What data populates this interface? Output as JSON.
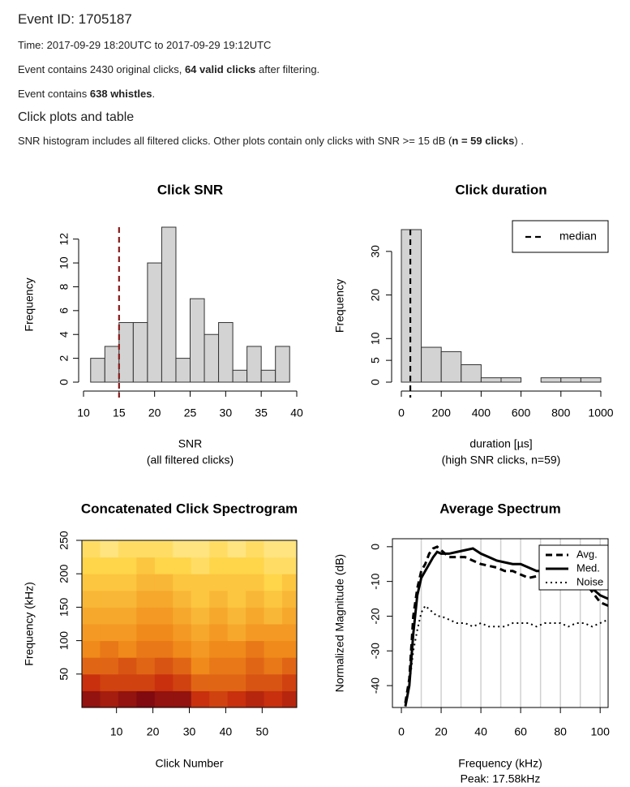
{
  "header": {
    "title": "Event ID: 1705187",
    "time": "Time: 2017-09-29 18:20UTC to 2017-09-29 19:12UTC",
    "clicks": [
      "Event contains 2430 original clicks, ",
      "64 valid clicks",
      " after filtering."
    ],
    "whistles": [
      "Event contains ",
      "638 whistles",
      "."
    ],
    "section": "Click plots and table",
    "note": [
      "SNR histogram includes all filtered clicks. Other plots contain only clicks with SNR >= 15 dB (",
      "n = 59 clicks",
      ") ."
    ]
  },
  "chart_data": [
    {
      "type": "histogram",
      "title": "Click SNR",
      "xlabel": "SNR",
      "subtitle": "(all filtered clicks)",
      "ylabel": "Frequency",
      "bins": [
        11,
        13,
        15,
        17,
        19,
        21,
        23,
        25,
        27,
        29,
        31,
        33,
        35,
        37,
        39
      ],
      "values": [
        2,
        3,
        5,
        5,
        10,
        13,
        2,
        7,
        4,
        5,
        1,
        3,
        1,
        3
      ],
      "color": "#d3d3d3",
      "xlim": [
        10,
        40
      ],
      "xticks": [
        10,
        15,
        20,
        25,
        30,
        35,
        40
      ],
      "ylim": [
        0,
        13
      ],
      "yticks": [
        0,
        2,
        4,
        6,
        8,
        10,
        12
      ],
      "vline": {
        "value": 15,
        "color": "#8b1a1a"
      }
    },
    {
      "type": "histogram",
      "title": "Click duration",
      "xlabel": "duration [µs]",
      "subtitle": "(high SNR clicks, n=59)",
      "ylabel": "Frequency",
      "bins": [
        0,
        100,
        200,
        300,
        400,
        500,
        600,
        700,
        800,
        900,
        1000
      ],
      "values": [
        35,
        8,
        7,
        4,
        1,
        1,
        0,
        1,
        1,
        1
      ],
      "color": "#d3d3d3",
      "xlim": [
        0,
        1000
      ],
      "xticks": [
        0,
        200,
        400,
        600,
        800,
        1000
      ],
      "ylim": [
        0,
        35
      ],
      "yticks": [
        0,
        5,
        10,
        20,
        30
      ],
      "vline": {
        "value": 45,
        "color": "#000000",
        "name": "median"
      },
      "legend": "top-right"
    },
    {
      "type": "heatmap",
      "title": "Concatenated Click Spectrogram",
      "xlabel": "Click Number",
      "ylabel": "Frequency (kHz)",
      "xbins": [
        0.5,
        5.5,
        10.5,
        15.5,
        20.5,
        25.5,
        30.5,
        35.5,
        40.5,
        45.5,
        50.5,
        55.5,
        59.5
      ],
      "ybins": [
        0,
        25,
        50,
        75,
        100,
        125,
        150,
        175,
        200,
        225,
        250
      ],
      "z": [
        [
          0.9,
          0.85,
          0.9,
          0.95,
          0.9,
          0.9,
          0.75,
          0.7,
          0.75,
          0.8,
          0.75,
          0.8
        ],
        [
          0.75,
          0.7,
          0.7,
          0.7,
          0.75,
          0.7,
          0.6,
          0.6,
          0.6,
          0.65,
          0.65,
          0.7
        ],
        [
          0.6,
          0.6,
          0.65,
          0.6,
          0.65,
          0.6,
          0.5,
          0.55,
          0.55,
          0.6,
          0.55,
          0.6
        ],
        [
          0.5,
          0.55,
          0.5,
          0.55,
          0.55,
          0.5,
          0.45,
          0.5,
          0.5,
          0.55,
          0.5,
          0.5
        ],
        [
          0.45,
          0.45,
          0.45,
          0.5,
          0.5,
          0.45,
          0.4,
          0.45,
          0.4,
          0.45,
          0.45,
          0.45
        ],
        [
          0.4,
          0.4,
          0.4,
          0.45,
          0.45,
          0.4,
          0.35,
          0.4,
          0.35,
          0.4,
          0.35,
          0.4
        ],
        [
          0.35,
          0.35,
          0.35,
          0.4,
          0.4,
          0.35,
          0.3,
          0.35,
          0.3,
          0.35,
          0.3,
          0.35
        ],
        [
          0.3,
          0.3,
          0.3,
          0.35,
          0.35,
          0.3,
          0.3,
          0.3,
          0.3,
          0.3,
          0.25,
          0.3
        ],
        [
          0.25,
          0.25,
          0.25,
          0.3,
          0.25,
          0.25,
          0.2,
          0.25,
          0.25,
          0.25,
          0.2,
          0.2
        ],
        [
          0.2,
          0.15,
          0.2,
          0.2,
          0.2,
          0.15,
          0.15,
          0.2,
          0.15,
          0.2,
          0.15,
          0.15
        ]
      ],
      "colors": [
        "#fffbd0",
        "#ffd54a",
        "#f08a1a",
        "#c8300e",
        "#6e0010"
      ],
      "xlim": [
        0.5,
        59.5
      ],
      "xticks": [
        10,
        20,
        30,
        40,
        50
      ],
      "ylim": [
        0,
        250
      ],
      "yticks": [
        50,
        100,
        150,
        200,
        250
      ]
    },
    {
      "type": "line",
      "title": "Average Spectrum",
      "xlabel": "Frequency (kHz)",
      "subtitle": "Peak: 17.58kHz",
      "ylabel": "Normalized Magnitude (dB)",
      "x": [
        2,
        4,
        6,
        8,
        10,
        12,
        14,
        16,
        18,
        20,
        24,
        28,
        32,
        36,
        40,
        44,
        48,
        52,
        56,
        60,
        64,
        68,
        72,
        76,
        80,
        84,
        88,
        92,
        96,
        100,
        104
      ],
      "series": [
        {
          "name": "Avg.",
          "color": "#000000",
          "dash": "dashed",
          "values": [
            -45,
            -38,
            -20,
            -12,
            -7,
            -5,
            -2,
            -0.5,
            0,
            -1,
            -3,
            -3,
            -3,
            -4,
            -5,
            -5.5,
            -6,
            -7,
            -7,
            -8,
            -9,
            -8.5,
            -9,
            -9,
            -8.5,
            -9,
            -9,
            -10,
            -13,
            -16,
            -17
          ]
        },
        {
          "name": "Med.",
          "color": "#000000",
          "dash": "solid",
          "values": [
            -46,
            -40,
            -25,
            -14,
            -9,
            -7,
            -5,
            -3,
            -1.5,
            -2,
            -2,
            -1.5,
            -1,
            -0.5,
            -2,
            -3,
            -4,
            -4.5,
            -5,
            -5,
            -6,
            -7,
            -7,
            -8,
            -8,
            -8,
            -8.5,
            -10,
            -12,
            -14,
            -15
          ]
        },
        {
          "name": "Noise",
          "color": "#000000",
          "dash": "dotted",
          "values": [
            -45,
            -40,
            -30,
            -24,
            -19,
            -17,
            -18,
            -19,
            -20,
            -20,
            -21,
            -22,
            -22,
            -23,
            -22,
            -23,
            -23,
            -23,
            -22,
            -22,
            -22,
            -23,
            -22,
            -22,
            -22,
            -23,
            -22,
            -22,
            -23,
            -22,
            -21
          ]
        }
      ],
      "xlim": [
        -4.5,
        104
      ],
      "xticks": [
        0,
        20,
        40,
        60,
        80,
        100
      ],
      "ylim": [
        -46.3,
        2.3
      ],
      "yticks": [
        -40,
        -30,
        -20,
        -10,
        0
      ],
      "grid_x": [
        10,
        20,
        30,
        40,
        50,
        60,
        70,
        80,
        90,
        100
      ],
      "legend": "top-right"
    }
  ]
}
